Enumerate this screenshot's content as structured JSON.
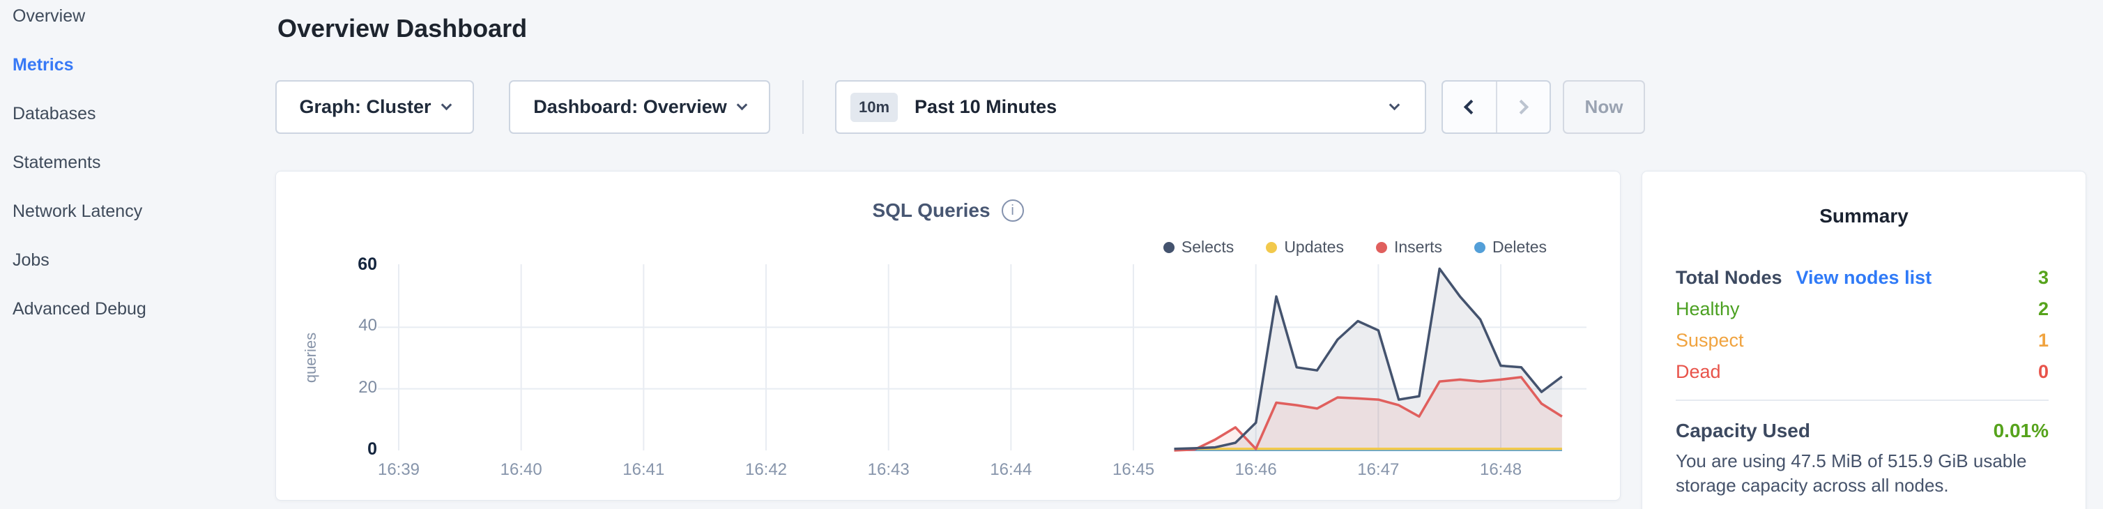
{
  "sidebar": {
    "items": [
      {
        "label": "Overview",
        "active": false
      },
      {
        "label": "Metrics",
        "active": true
      },
      {
        "label": "Databases",
        "active": false
      },
      {
        "label": "Statements",
        "active": false
      },
      {
        "label": "Network Latency",
        "active": false
      },
      {
        "label": "Jobs",
        "active": false
      },
      {
        "label": "Advanced Debug",
        "active": false
      }
    ]
  },
  "header": {
    "title": "Overview Dashboard"
  },
  "controls": {
    "graph_dropdown": "Graph: Cluster",
    "dashboard_dropdown": "Dashboard: Overview",
    "time_badge": "10m",
    "time_label": "Past 10 Minutes",
    "now_label": "Now"
  },
  "chart_data": {
    "type": "area",
    "title": "SQL Queries",
    "info_icon": "i",
    "ylabel": "queries",
    "xlabel": "",
    "x_ticks": [
      "16:39",
      "16:40",
      "16:41",
      "16:42",
      "16:43",
      "16:44",
      "16:45",
      "16:46",
      "16:47",
      "16:48"
    ],
    "y_ticks": [
      0,
      20,
      40,
      60
    ],
    "ylim": [
      0,
      60
    ],
    "x_minutes_range": [
      0,
      9.67
    ],
    "grid": true,
    "legend_position": "top-right",
    "x_minutes": [
      6.333,
      6.5,
      6.667,
      6.833,
      7.0,
      7.167,
      7.333,
      7.5,
      7.667,
      7.833,
      8.0,
      8.167,
      8.333,
      8.5,
      8.667,
      8.833,
      9.0,
      9.167,
      9.333,
      9.5
    ],
    "series": [
      {
        "name": "Selects",
        "color": "#44536e",
        "fill": "rgba(68,83,110,0.10)",
        "values": [
          0.5,
          0.7,
          1,
          2.5,
          9,
          50,
          27,
          26,
          36,
          42,
          39,
          16.5,
          17.6,
          59,
          50,
          42.5,
          27.5,
          27,
          19,
          24
        ]
      },
      {
        "name": "Updates",
        "color": "#f2c94c",
        "fill": null,
        "values": [
          0.5,
          0.5,
          0.5,
          0.5,
          0.5,
          0.5,
          0.5,
          0.5,
          0.5,
          0.5,
          0.5,
          0.5,
          0.5,
          0.5,
          0.5,
          0.5,
          0.5,
          0.5,
          0.5,
          0.5
        ]
      },
      {
        "name": "Inserts",
        "color": "#e05f5d",
        "fill": "rgba(224,95,93,0.10)",
        "values": [
          0,
          0.3,
          3.5,
          7.5,
          0.5,
          15.5,
          14.7,
          13.6,
          17.2,
          16.9,
          16.5,
          14.7,
          11,
          22.4,
          23,
          22.4,
          23,
          23.8,
          15.2,
          11
        ]
      },
      {
        "name": "Deletes",
        "color": "#539fd8",
        "fill": null,
        "values": [
          0.15,
          0.15,
          0.15,
          0.15,
          0.15,
          0.15,
          0.15,
          0.15,
          0.15,
          0.15,
          0.15,
          0.15,
          0.15,
          0.15,
          0.15,
          0.15,
          0.15,
          0.15,
          0.15,
          0.15
        ]
      }
    ]
  },
  "summary": {
    "title": "Summary",
    "rows": [
      {
        "label": "Total Nodes",
        "link": "View nodes list",
        "value": "3",
        "label_color": "#3c4960",
        "value_color": "#56a31c",
        "head": true
      },
      {
        "label": "Healthy",
        "link": null,
        "value": "2",
        "label_color": "#4ba021",
        "value_color": "#56a31c",
        "head": false
      },
      {
        "label": "Suspect",
        "link": null,
        "value": "1",
        "label_color": "#f0a33f",
        "value_color": "#f0a33f",
        "head": false
      },
      {
        "label": "Dead",
        "link": null,
        "value": "0",
        "label_color": "#e8534a",
        "value_color": "#e8534a",
        "head": false
      }
    ],
    "capacity": {
      "label": "Capacity Used",
      "value": "0.01%",
      "value_color": "#56a31c",
      "description": "You are using 47.5 MiB of 515.9 GiB usable storage capacity across all nodes."
    }
  }
}
